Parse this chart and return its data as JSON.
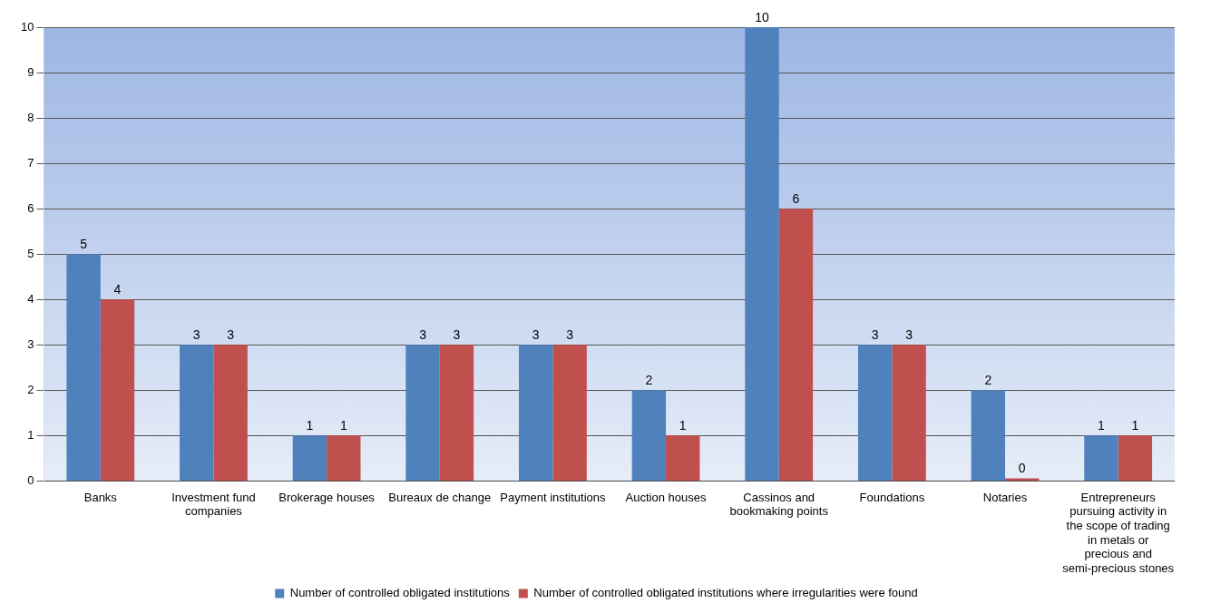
{
  "chart_data": {
    "type": "bar",
    "categories": [
      "Banks",
      "Investment fund companies",
      "Brokerage houses",
      "Bureaux de change",
      "Payment institutions",
      "Auction houses",
      "Cassinos and bookmaking points",
      "Foundations",
      "Notaries",
      "Entrepreneurs pursuing activity in the scope of trading in metals or precious and semi-precious stones"
    ],
    "series": [
      {
        "name": "Number of controlled obligated institutions",
        "color": "#4f81bd",
        "values": [
          5,
          3,
          1,
          3,
          3,
          2,
          10,
          3,
          2,
          1
        ]
      },
      {
        "name": "Number of controlled obligated institutions where irregularities were found",
        "color": "#c0504d",
        "values": [
          4,
          3,
          1,
          3,
          3,
          1,
          6,
          3,
          0,
          1
        ]
      }
    ],
    "ylim": [
      0,
      10
    ],
    "yticks": [
      0,
      1,
      2,
      3,
      4,
      5,
      6,
      7,
      8,
      9,
      10
    ],
    "grid": "y",
    "legend": "bottom",
    "data_labels": true
  }
}
